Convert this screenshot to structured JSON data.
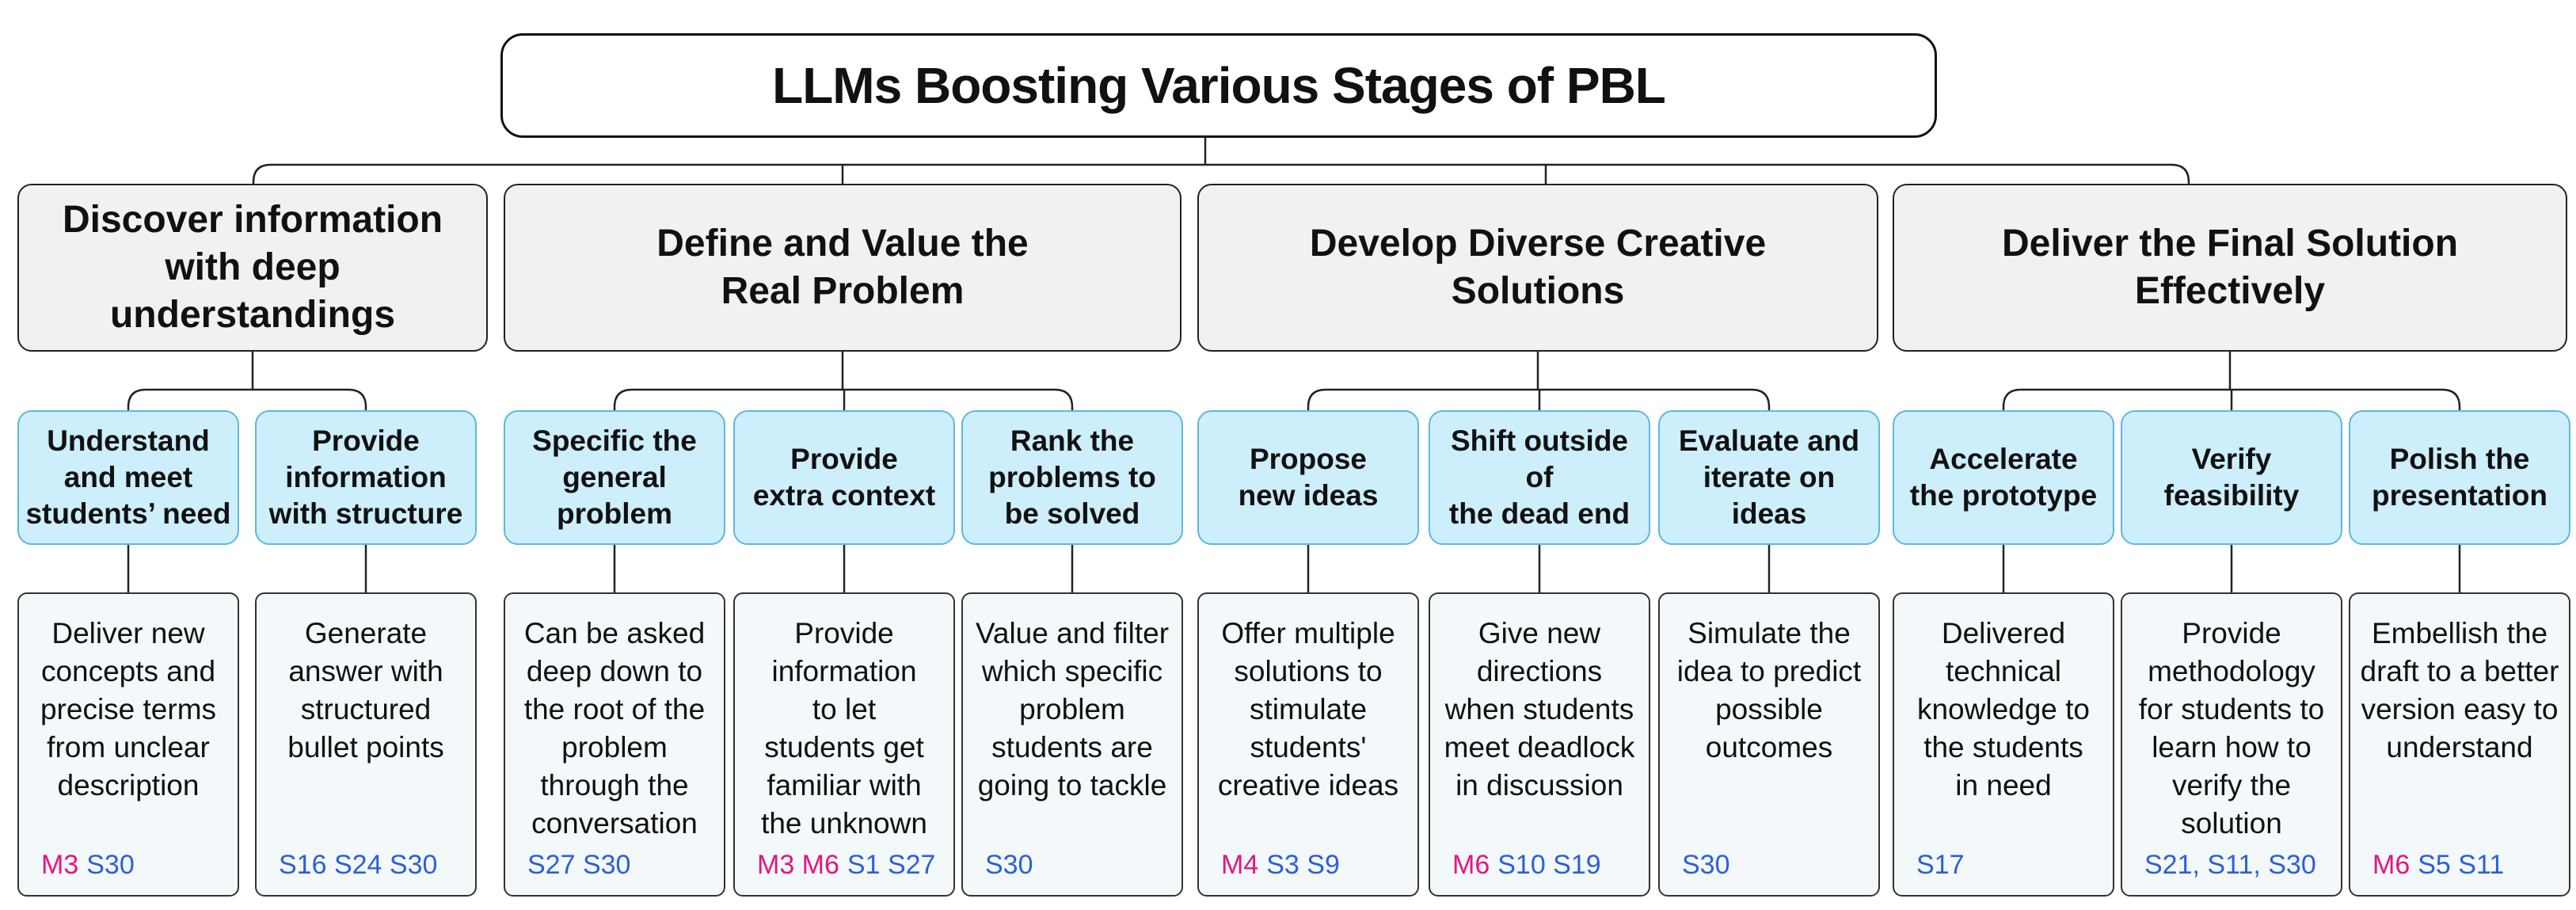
{
  "title": "LLMs Boosting Various Stages of PBL",
  "colors": {
    "stage_fill": "#f1f1f1",
    "sub_fill": "#cdeefb",
    "sub_border": "#5fb7dd",
    "m_ref": "#e5157f",
    "s_ref": "#2c5fd8"
  },
  "stages": [
    {
      "label": [
        "Discover information",
        "with deep",
        "understandings"
      ]
    },
    {
      "label": [
        "Define and Value the",
        "Real Problem"
      ]
    },
    {
      "label": [
        "Develop Diverse Creative",
        "Solutions"
      ]
    },
    {
      "label": [
        "Deliver the Final Solution",
        "Effectively"
      ]
    }
  ],
  "items": [
    {
      "label": [
        "Understand",
        "and meet",
        "students’ need"
      ],
      "desc": [
        "Deliver new",
        "concepts and",
        "precise terms",
        "from unclear",
        "description"
      ],
      "m_refs": "M3",
      "s_refs": "S30"
    },
    {
      "label": [
        "Provide",
        "information",
        "with structure"
      ],
      "desc": [
        "Generate",
        "answer with",
        "structured",
        "bullet points"
      ],
      "m_refs": "",
      "s_refs": "S16 S24 S30"
    },
    {
      "label": [
        "Specific the",
        "general",
        "problem"
      ],
      "desc": [
        "Can be asked",
        "deep down to",
        "the root of the",
        "problem",
        "through the",
        "conversation"
      ],
      "m_refs": "",
      "s_refs": "S27 S30"
    },
    {
      "label": [
        "Provide",
        "extra context"
      ],
      "desc": [
        "Provide",
        "information",
        "to let",
        "students get",
        "familiar with",
        "the unknown"
      ],
      "m_refs": "M3 M6",
      "s_refs": "S1 S27"
    },
    {
      "label": [
        "Rank the",
        "problems to",
        "be solved"
      ],
      "desc": [
        "Value and filter",
        "which specific",
        "problem",
        "students are",
        "going to tackle"
      ],
      "m_refs": "",
      "s_refs": "S30"
    },
    {
      "label": [
        "Propose",
        "new ideas"
      ],
      "desc": [
        "Offer multiple",
        "solutions to",
        "stimulate",
        "students'",
        "creative ideas"
      ],
      "m_refs": "M4",
      "s_refs": "S3 S9"
    },
    {
      "label": [
        "Shift outside of",
        "the dead end"
      ],
      "desc": [
        "Give new",
        "directions",
        "when students",
        "meet deadlock",
        "in discussion"
      ],
      "m_refs": "M6",
      "s_refs": "S10 S19"
    },
    {
      "label": [
        "Evaluate and",
        "iterate on ideas"
      ],
      "desc": [
        "Simulate the",
        "idea to predict",
        "possible",
        "outcomes"
      ],
      "m_refs": "",
      "s_refs": "S30"
    },
    {
      "label": [
        "Accelerate",
        "the prototype"
      ],
      "desc": [
        "Delivered",
        "technical",
        "knowledge to",
        "the students",
        "in need"
      ],
      "m_refs": "",
      "s_refs": "S17"
    },
    {
      "label": [
        "Verify",
        "feasibility"
      ],
      "desc": [
        "Provide",
        "methodology",
        "for students  to",
        "learn how  to",
        "verify the",
        "solution"
      ],
      "m_refs": "",
      "s_refs": "S21, S11, S30"
    },
    {
      "label": [
        "Polish the",
        "presentation"
      ],
      "desc": [
        "Embellish the",
        "draft to a better",
        "version easy to",
        "understand"
      ],
      "m_refs": "M6",
      "s_refs": "S5 S11"
    }
  ]
}
